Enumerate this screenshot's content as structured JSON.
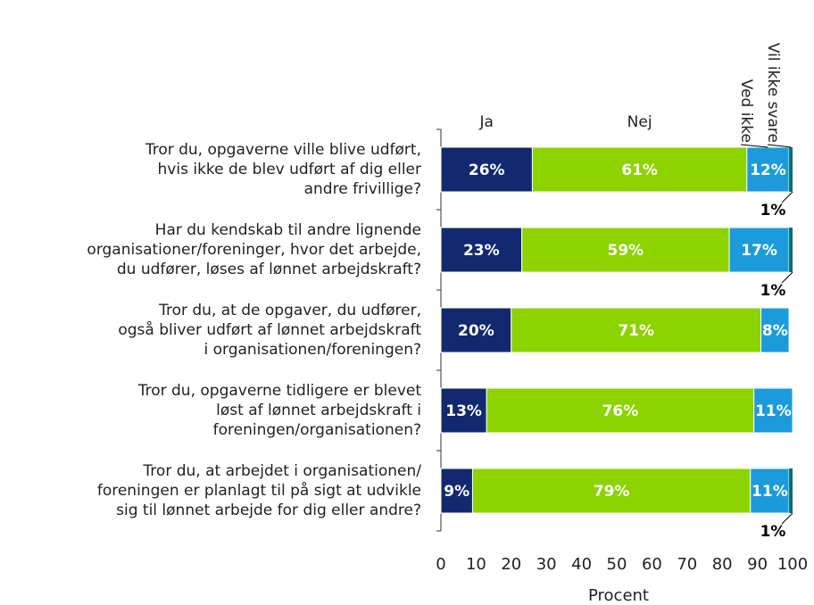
{
  "chart_data": {
    "type": "stacked-barh",
    "categories": [
      [
        "Tror du, opgaverne ville blive udført,",
        "hvis ikke de blev udført af dig eller",
        "andre frivillige?"
      ],
      [
        "Har du kendskab til andre lignende",
        "organisationer/foreninger, hvor det arbejde,",
        "du udfører, løses af lønnet arbejdskraft?"
      ],
      [
        "Tror du, at de opgaver, du udfører,",
        "også bliver udført af lønnet arbejdskraft",
        "i organisationen/foreningen?"
      ],
      [
        "Tror du, opgaverne tidligere er blevet",
        "løst af lønnet arbejdskraft i",
        "foreningen/organisationen?"
      ],
      [
        "Tror du, at arbejdet i organisationen/",
        "foreningen er planlagt til på sigt at udvikle",
        "sig til lønnet arbejde for dig eller andre?"
      ]
    ],
    "series": [
      {
        "name": "Ja",
        "color": "#13296f",
        "values": [
          26,
          23,
          20,
          13,
          9
        ],
        "value_labels": [
          "26%",
          "23%",
          "20%",
          "13%",
          "9%"
        ]
      },
      {
        "name": "Nej",
        "color": "#8dd300",
        "values": [
          61,
          59,
          71,
          76,
          79
        ],
        "value_labels": [
          "61%",
          "59%",
          "71%",
          "76%",
          "79%"
        ]
      },
      {
        "name": "Ved ikke",
        "color": "#1b9bdb",
        "values": [
          12,
          17,
          8,
          11,
          11
        ],
        "value_labels": [
          "12%",
          "17%",
          "8%",
          "11%",
          "11%"
        ]
      },
      {
        "name": "Vil ikke svare",
        "color": "#0c6f66",
        "values": [
          1,
          1,
          0,
          0,
          1
        ],
        "value_labels": [
          "1%",
          "1%",
          null,
          null,
          "1%"
        ]
      }
    ],
    "xlim": [
      0,
      100
    ],
    "xticks": [
      0,
      10,
      20,
      30,
      40,
      50,
      60,
      70,
      80,
      90,
      100
    ],
    "xlabel": "Procent"
  }
}
